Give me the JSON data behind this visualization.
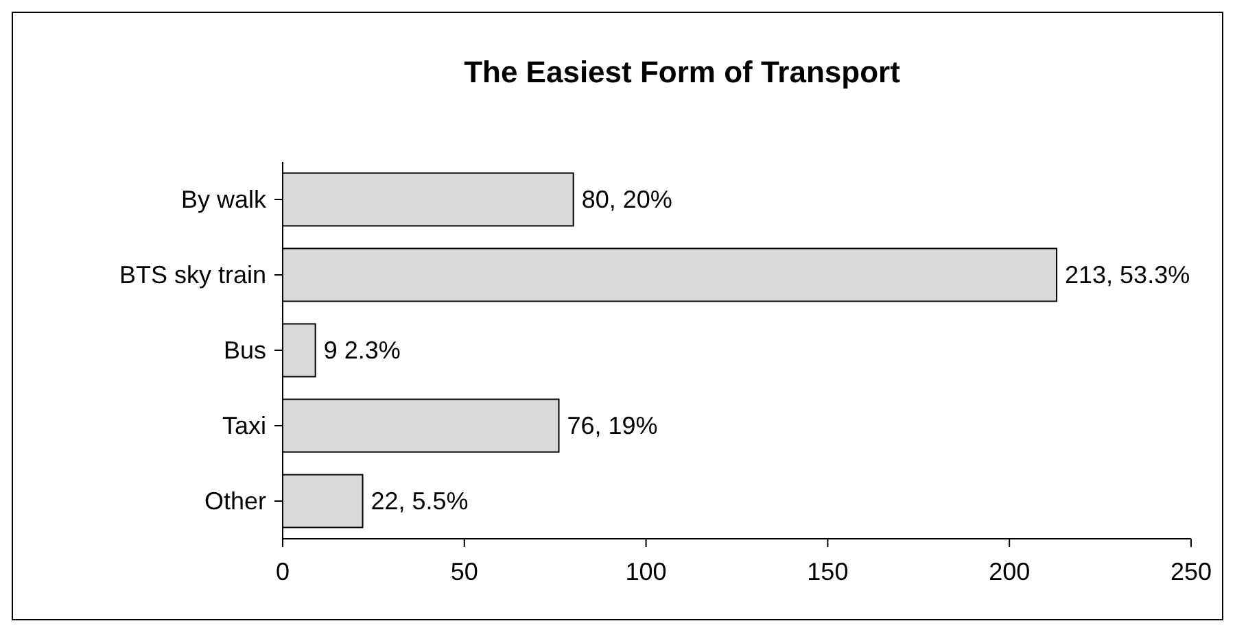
{
  "chart_data": {
    "type": "bar",
    "orientation": "horizontal",
    "title": "The Easiest Form of Transport",
    "categories": [
      "By walk",
      "BTS sky train",
      "Bus",
      "Taxi",
      "Other"
    ],
    "values": [
      80,
      213,
      9,
      76,
      22
    ],
    "value_labels": [
      "80, 20%",
      "213, 53.3%",
      "9 2.3%",
      "76, 19%",
      "22, 5.5%"
    ],
    "color": "#d9d9d9",
    "xlim": [
      0,
      250
    ],
    "xticks": [
      0,
      50,
      100,
      150,
      200,
      250
    ],
    "grid": false
  }
}
